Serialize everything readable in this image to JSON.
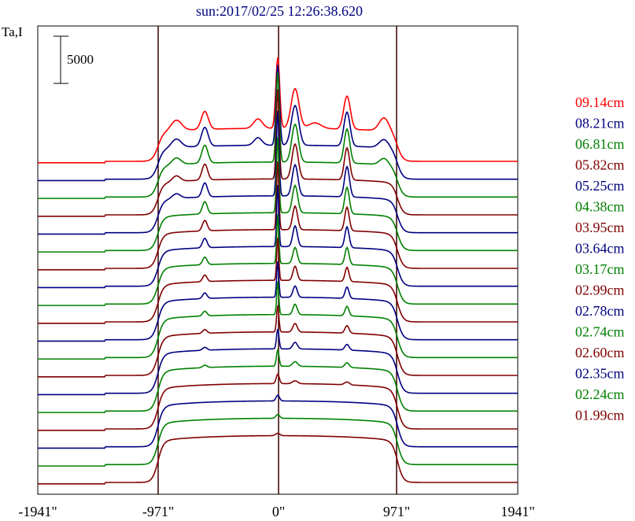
{
  "title": "sun:2017/02/25 12:26:38.620",
  "ylabel": "Ta,I",
  "scale_bar_label": "5000",
  "chart_data": {
    "type": "line",
    "title": "sun:2017/02/25 12:26:38.620",
    "xlabel": "",
    "ylabel": "Ta,I",
    "x_ticks": [
      "-1941\"",
      "-971\"",
      "0\"",
      "971\"",
      "1941\""
    ],
    "xlim": [
      -1941,
      1941
    ],
    "reference_lines": [
      -971,
      0,
      971
    ],
    "scale_bar_value": 5000,
    "series": [
      {
        "name": "09.14cm",
        "color": "#ff0000",
        "quiet_level": 3500,
        "features": [
          {
            "x": 0,
            "w": 22,
            "a": 7500
          },
          {
            "x": 140,
            "w": 45,
            "a": 4200
          },
          {
            "x": 560,
            "w": 38,
            "a": 3500
          },
          {
            "x": -590,
            "w": 40,
            "a": 1900
          },
          {
            "x": -820,
            "w": 60,
            "a": 1100
          },
          {
            "x": 860,
            "w": 55,
            "a": 1400
          },
          {
            "x": -160,
            "w": 50,
            "a": 1000
          },
          {
            "x": 300,
            "w": 70,
            "a": 600
          }
        ]
      },
      {
        "name": "08.21cm",
        "color": "#000080",
        "quiet_level": 3600,
        "features": [
          {
            "x": 0,
            "w": 20,
            "a": 8500
          },
          {
            "x": 140,
            "w": 42,
            "a": 4200
          },
          {
            "x": 560,
            "w": 35,
            "a": 3600
          },
          {
            "x": -590,
            "w": 38,
            "a": 2000
          },
          {
            "x": -820,
            "w": 55,
            "a": 900
          },
          {
            "x": 860,
            "w": 55,
            "a": 900
          },
          {
            "x": -160,
            "w": 45,
            "a": 800
          }
        ]
      },
      {
        "name": "06.81cm",
        "color": "#008000",
        "quiet_level": 3700,
        "features": [
          {
            "x": 0,
            "w": 18,
            "a": 9500
          },
          {
            "x": 140,
            "w": 38,
            "a": 4000
          },
          {
            "x": 560,
            "w": 32,
            "a": 3600
          },
          {
            "x": -590,
            "w": 35,
            "a": 1900
          },
          {
            "x": -820,
            "w": 50,
            "a": 700
          },
          {
            "x": 860,
            "w": 50,
            "a": 700
          }
        ]
      },
      {
        "name": "05.82cm",
        "color": "#800000",
        "quiet_level": 3800,
        "features": [
          {
            "x": 0,
            "w": 16,
            "a": 9500
          },
          {
            "x": 140,
            "w": 35,
            "a": 3700
          },
          {
            "x": 560,
            "w": 30,
            "a": 3400
          },
          {
            "x": -590,
            "w": 32,
            "a": 1700
          },
          {
            "x": -820,
            "w": 45,
            "a": 600
          }
        ]
      },
      {
        "name": "05.25cm",
        "color": "#000080",
        "quiet_level": 3900,
        "features": [
          {
            "x": 0,
            "w": 15,
            "a": 9000
          },
          {
            "x": 140,
            "w": 32,
            "a": 3300
          },
          {
            "x": 560,
            "w": 28,
            "a": 3200
          },
          {
            "x": -590,
            "w": 30,
            "a": 1500
          },
          {
            "x": -820,
            "w": 45,
            "a": 500
          }
        ]
      },
      {
        "name": "04.38cm",
        "color": "#008000",
        "quiet_level": 4000,
        "features": [
          {
            "x": 0,
            "w": 14,
            "a": 8000
          },
          {
            "x": 140,
            "w": 30,
            "a": 2900
          },
          {
            "x": 560,
            "w": 26,
            "a": 2800
          },
          {
            "x": -590,
            "w": 28,
            "a": 1300
          }
        ]
      },
      {
        "name": "03.95cm",
        "color": "#800000",
        "quiet_level": 4100,
        "features": [
          {
            "x": 0,
            "w": 13,
            "a": 7200
          },
          {
            "x": 140,
            "w": 28,
            "a": 2500
          },
          {
            "x": 560,
            "w": 25,
            "a": 2500
          },
          {
            "x": -590,
            "w": 27,
            "a": 1100
          }
        ]
      },
      {
        "name": "03.64cm",
        "color": "#000080",
        "quiet_level": 4200,
        "features": [
          {
            "x": 0,
            "w": 12,
            "a": 6500
          },
          {
            "x": 140,
            "w": 26,
            "a": 2200
          },
          {
            "x": 560,
            "w": 24,
            "a": 2200
          },
          {
            "x": -590,
            "w": 26,
            "a": 1000
          }
        ]
      },
      {
        "name": "03.17cm",
        "color": "#008000",
        "quiet_level": 4300,
        "features": [
          {
            "x": 0,
            "w": 12,
            "a": 5200
          },
          {
            "x": 140,
            "w": 25,
            "a": 1700
          },
          {
            "x": 560,
            "w": 23,
            "a": 1800
          },
          {
            "x": -590,
            "w": 25,
            "a": 800
          }
        ]
      },
      {
        "name": "02.99cm",
        "color": "#800000",
        "quiet_level": 4400,
        "features": [
          {
            "x": 0,
            "w": 12,
            "a": 4500
          },
          {
            "x": 140,
            "w": 24,
            "a": 1500
          },
          {
            "x": 560,
            "w": 22,
            "a": 1500
          },
          {
            "x": -590,
            "w": 24,
            "a": 700
          }
        ]
      },
      {
        "name": "02.78cm",
        "color": "#000080",
        "quiet_level": 4500,
        "features": [
          {
            "x": 0,
            "w": 12,
            "a": 3800
          },
          {
            "x": 140,
            "w": 24,
            "a": 1200
          },
          {
            "x": 560,
            "w": 22,
            "a": 1200
          },
          {
            "x": -590,
            "w": 24,
            "a": 600
          }
        ]
      },
      {
        "name": "02.74cm",
        "color": "#008000",
        "quiet_level": 4550,
        "features": [
          {
            "x": 0,
            "w": 12,
            "a": 3500
          },
          {
            "x": 140,
            "w": 24,
            "a": 1100
          },
          {
            "x": 560,
            "w": 22,
            "a": 1000
          },
          {
            "x": -590,
            "w": 24,
            "a": 500
          }
        ]
      },
      {
        "name": "02.60cm",
        "color": "#800000",
        "quiet_level": 4600,
        "features": [
          {
            "x": 0,
            "w": 13,
            "a": 2800
          },
          {
            "x": 140,
            "w": 25,
            "a": 900
          },
          {
            "x": 560,
            "w": 23,
            "a": 800
          },
          {
            "x": -590,
            "w": 24,
            "a": 400
          }
        ]
      },
      {
        "name": "02.35cm",
        "color": "#000080",
        "quiet_level": 4700,
        "features": [
          {
            "x": 0,
            "w": 14,
            "a": 2100
          },
          {
            "x": 140,
            "w": 26,
            "a": 700
          },
          {
            "x": 560,
            "w": 24,
            "a": 600
          },
          {
            "x": -590,
            "w": 25,
            "a": 300
          }
        ]
      },
      {
        "name": "02.24cm",
        "color": "#008000",
        "quiet_level": 4750,
        "features": [
          {
            "x": 0,
            "w": 15,
            "a": 1700
          },
          {
            "x": 140,
            "w": 28,
            "a": 500
          },
          {
            "x": 560,
            "w": 25,
            "a": 500
          },
          {
            "x": -590,
            "w": 26,
            "a": 250
          }
        ]
      },
      {
        "name": "01.99cm",
        "color": "#800000",
        "quiet_level": 4800,
        "features": [
          {
            "x": 0,
            "w": 18,
            "a": 1000
          },
          {
            "x": 140,
            "w": 30,
            "a": 300
          },
          {
            "x": 560,
            "w": 28,
            "a": 300
          }
        ]
      },
      {
        "name": "",
        "color": "#000080",
        "quiet_level": 4850,
        "features": [
          {
            "x": 0,
            "w": 20,
            "a": 600
          }
        ]
      },
      {
        "name": "",
        "color": "#008000",
        "quiet_level": 4900,
        "features": [
          {
            "x": 0,
            "w": 22,
            "a": 400
          }
        ]
      },
      {
        "name": "",
        "color": "#800000",
        "quiet_level": 4950,
        "features": [
          {
            "x": 0,
            "w": 25,
            "a": 250
          }
        ]
      }
    ]
  }
}
